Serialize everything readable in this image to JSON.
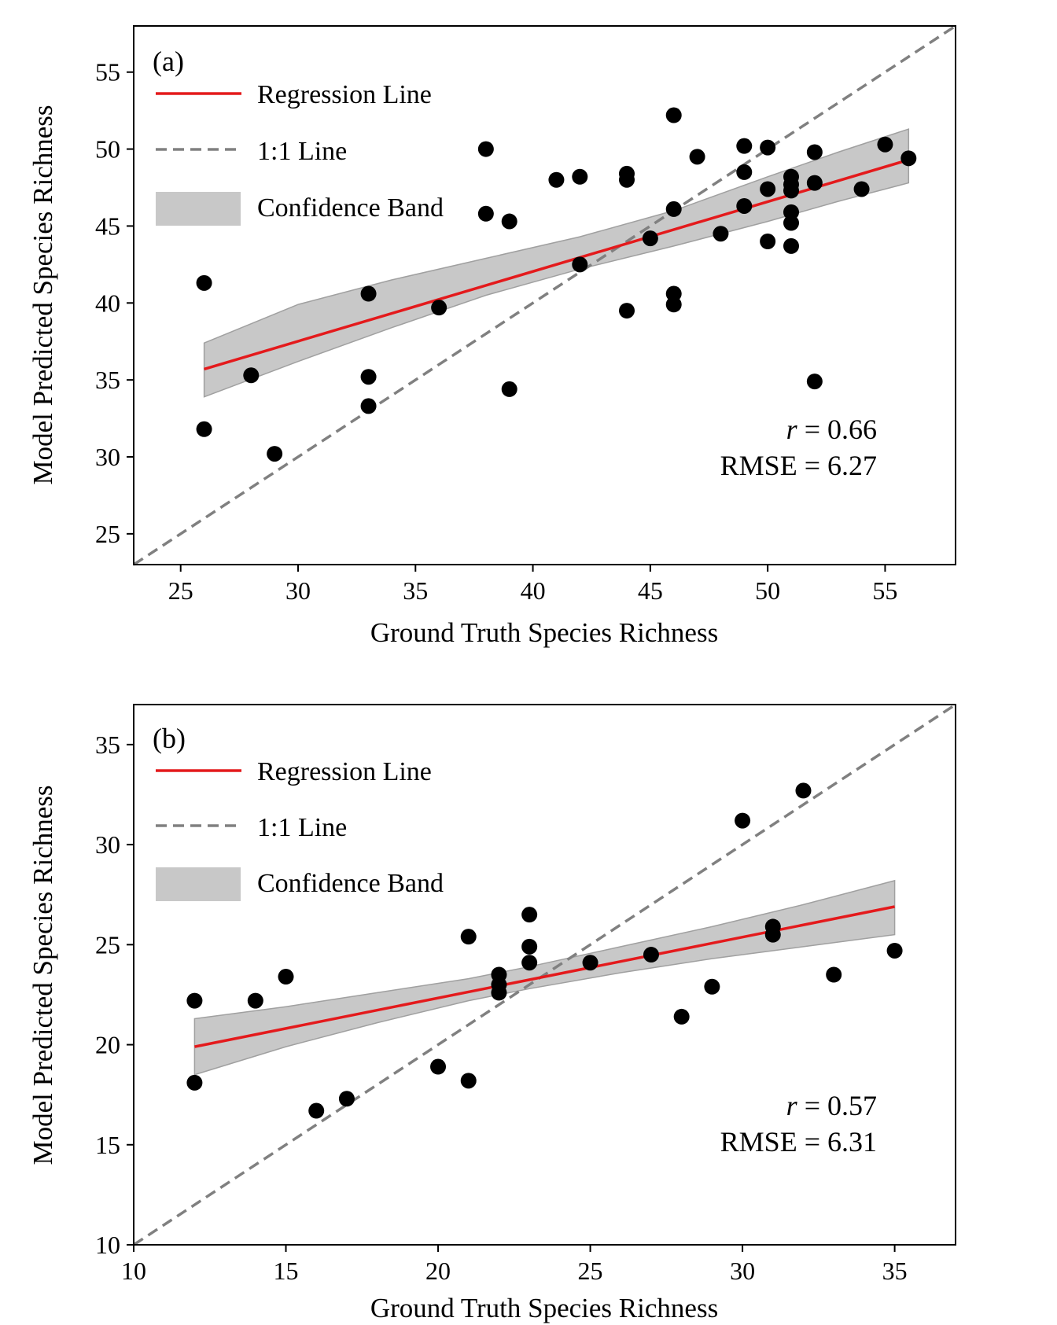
{
  "chart_data": [
    {
      "type": "scatter",
      "panel_label": "(a)",
      "xlabel": "Ground Truth Species Richness",
      "ylabel": "Model Predicted Species Richness",
      "xlim": [
        23,
        58
      ],
      "ylim": [
        23,
        58
      ],
      "xticks": [
        25,
        30,
        35,
        40,
        45,
        50,
        55
      ],
      "yticks": [
        25,
        30,
        35,
        40,
        45,
        50,
        55
      ],
      "legend": {
        "placement": "top-left",
        "entries": [
          "Regression Line",
          "1:1 Line",
          "Confidence Band"
        ]
      },
      "stats": {
        "r_label": "r",
        "r_text": " = 0.66",
        "rmse_text": "RMSE = 6.27"
      },
      "points": [
        [
          26,
          41.3
        ],
        [
          26,
          31.8
        ],
        [
          28,
          35.3
        ],
        [
          29,
          30.2
        ],
        [
          33,
          40.6
        ],
        [
          33,
          35.2
        ],
        [
          33,
          33.3
        ],
        [
          36,
          39.7
        ],
        [
          38,
          50.0
        ],
        [
          38,
          45.8
        ],
        [
          39,
          45.3
        ],
        [
          39,
          34.4
        ],
        [
          41,
          48.0
        ],
        [
          42,
          48.2
        ],
        [
          42,
          42.5
        ],
        [
          44,
          48.4
        ],
        [
          44,
          48.0
        ],
        [
          44,
          39.5
        ],
        [
          45,
          44.2
        ],
        [
          46,
          52.2
        ],
        [
          46,
          46.1
        ],
        [
          46,
          40.6
        ],
        [
          46,
          39.9
        ],
        [
          47,
          49.5
        ],
        [
          48,
          44.5
        ],
        [
          49,
          50.2
        ],
        [
          49,
          48.5
        ],
        [
          49,
          46.3
        ],
        [
          50,
          50.1
        ],
        [
          50,
          47.4
        ],
        [
          50,
          44.0
        ],
        [
          51,
          48.2
        ],
        [
          51,
          47.7
        ],
        [
          51,
          47.3
        ],
        [
          51,
          45.9
        ],
        [
          51,
          45.2
        ],
        [
          51,
          43.7
        ],
        [
          52,
          49.8
        ],
        [
          52,
          47.8
        ],
        [
          52,
          34.9
        ],
        [
          54,
          47.4
        ],
        [
          55,
          50.3
        ],
        [
          56,
          49.4
        ]
      ],
      "regression": {
        "x_range": [
          26,
          56
        ],
        "y_range": [
          35.7,
          49.3
        ]
      },
      "confidence_band": {
        "x": [
          26,
          30,
          34,
          38,
          42,
          46,
          50,
          53,
          56
        ],
        "upper": [
          37.4,
          39.9,
          41.5,
          42.9,
          44.3,
          46.0,
          48.2,
          49.8,
          51.3
        ],
        "lower": [
          33.9,
          36.2,
          38.4,
          40.5,
          42.2,
          43.7,
          45.3,
          46.6,
          47.8
        ]
      },
      "colors": {
        "regression": "#e41a1c",
        "one_to_one": "#808080",
        "band": "#c8c8c8",
        "points": "#000000"
      }
    },
    {
      "type": "scatter",
      "panel_label": "(b)",
      "xlabel": "Ground Truth Species Richness",
      "ylabel": "Model Predicted Species Richness",
      "xlim": [
        10,
        37
      ],
      "ylim": [
        10,
        37
      ],
      "xticks": [
        10,
        15,
        20,
        25,
        30,
        35
      ],
      "yticks": [
        10,
        15,
        20,
        25,
        30,
        35
      ],
      "legend": {
        "placement": "top-left",
        "entries": [
          "Regression Line",
          "1:1 Line",
          "Confidence Band"
        ]
      },
      "stats": {
        "r_label": "r",
        "r_text": " = 0.57",
        "rmse_text": "RMSE = 6.31"
      },
      "points": [
        [
          12,
          22.2
        ],
        [
          12,
          18.1
        ],
        [
          14,
          22.2
        ],
        [
          15,
          23.4
        ],
        [
          16,
          16.7
        ],
        [
          17,
          17.3
        ],
        [
          20,
          18.9
        ],
        [
          21,
          25.4
        ],
        [
          21,
          18.2
        ],
        [
          22,
          23.5
        ],
        [
          22,
          23.0
        ],
        [
          22,
          22.6
        ],
        [
          23,
          26.5
        ],
        [
          23,
          24.9
        ],
        [
          23,
          24.1
        ],
        [
          25,
          24.1
        ],
        [
          27,
          24.5
        ],
        [
          28,
          21.4
        ],
        [
          29,
          22.9
        ],
        [
          30,
          31.2
        ],
        [
          31,
          25.9
        ],
        [
          31,
          25.5
        ],
        [
          32,
          32.7
        ],
        [
          33,
          23.5
        ],
        [
          35,
          24.7
        ]
      ],
      "regression": {
        "x_range": [
          12,
          35
        ],
        "y_range": [
          19.9,
          26.9
        ]
      },
      "confidence_band": {
        "x": [
          12,
          15,
          18,
          21,
          23,
          26,
          29,
          32,
          35
        ],
        "upper": [
          21.3,
          21.9,
          22.6,
          23.3,
          23.9,
          24.9,
          25.9,
          27.0,
          28.2
        ],
        "lower": [
          18.5,
          19.9,
          21.1,
          22.2,
          22.8,
          23.6,
          24.3,
          24.9,
          25.5
        ]
      },
      "colors": {
        "regression": "#e41a1c",
        "one_to_one": "#808080",
        "band": "#c8c8c8",
        "points": "#000000"
      }
    }
  ]
}
